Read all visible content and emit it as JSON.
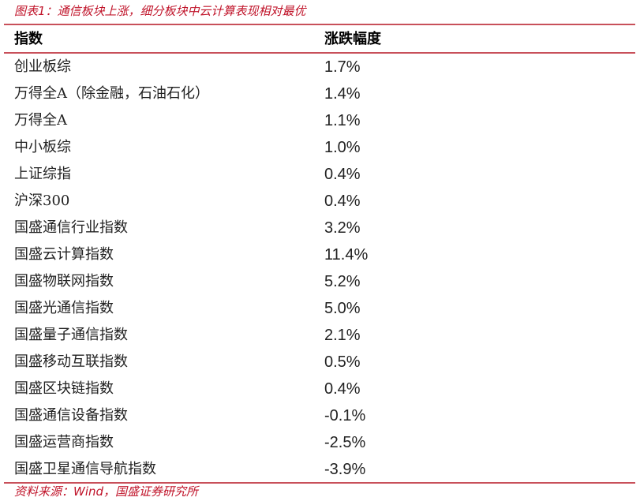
{
  "title": "图表1：通信板块上涨，细分板块中云计算表现相对最优",
  "header": {
    "col1": "指数",
    "col2": "涨跌幅度"
  },
  "rows": [
    {
      "name": "创业板综",
      "value": "1.7%"
    },
    {
      "name": "万得全A（除金融，石油石化）",
      "value": "1.4%"
    },
    {
      "name": "万得全A",
      "value": "1.1%"
    },
    {
      "name": "中小板综",
      "value": "1.0%"
    },
    {
      "name": "上证综指",
      "value": "0.4%"
    },
    {
      "name": "沪深300",
      "value": "0.4%"
    },
    {
      "name": "国盛通信行业指数",
      "value": "3.2%"
    },
    {
      "name": "国盛云计算指数",
      "value": "11.4%"
    },
    {
      "name": "国盛物联网指数",
      "value": "5.2%"
    },
    {
      "name": "国盛光通信指数",
      "value": "5.0%"
    },
    {
      "name": "国盛量子通信指数",
      "value": "2.1%"
    },
    {
      "name": "国盛移动互联指数",
      "value": "0.5%"
    },
    {
      "name": "国盛区块链指数",
      "value": "0.4%"
    },
    {
      "name": "国盛通信设备指数",
      "value": "-0.1%"
    },
    {
      "name": "国盛运营商指数",
      "value": "-2.5%"
    },
    {
      "name": "国盛卫星通信导航指数",
      "value": "-3.9%"
    }
  ],
  "source": "资料来源：Wind，国盛证券研究所",
  "colors": {
    "accent": "#c0142a"
  }
}
